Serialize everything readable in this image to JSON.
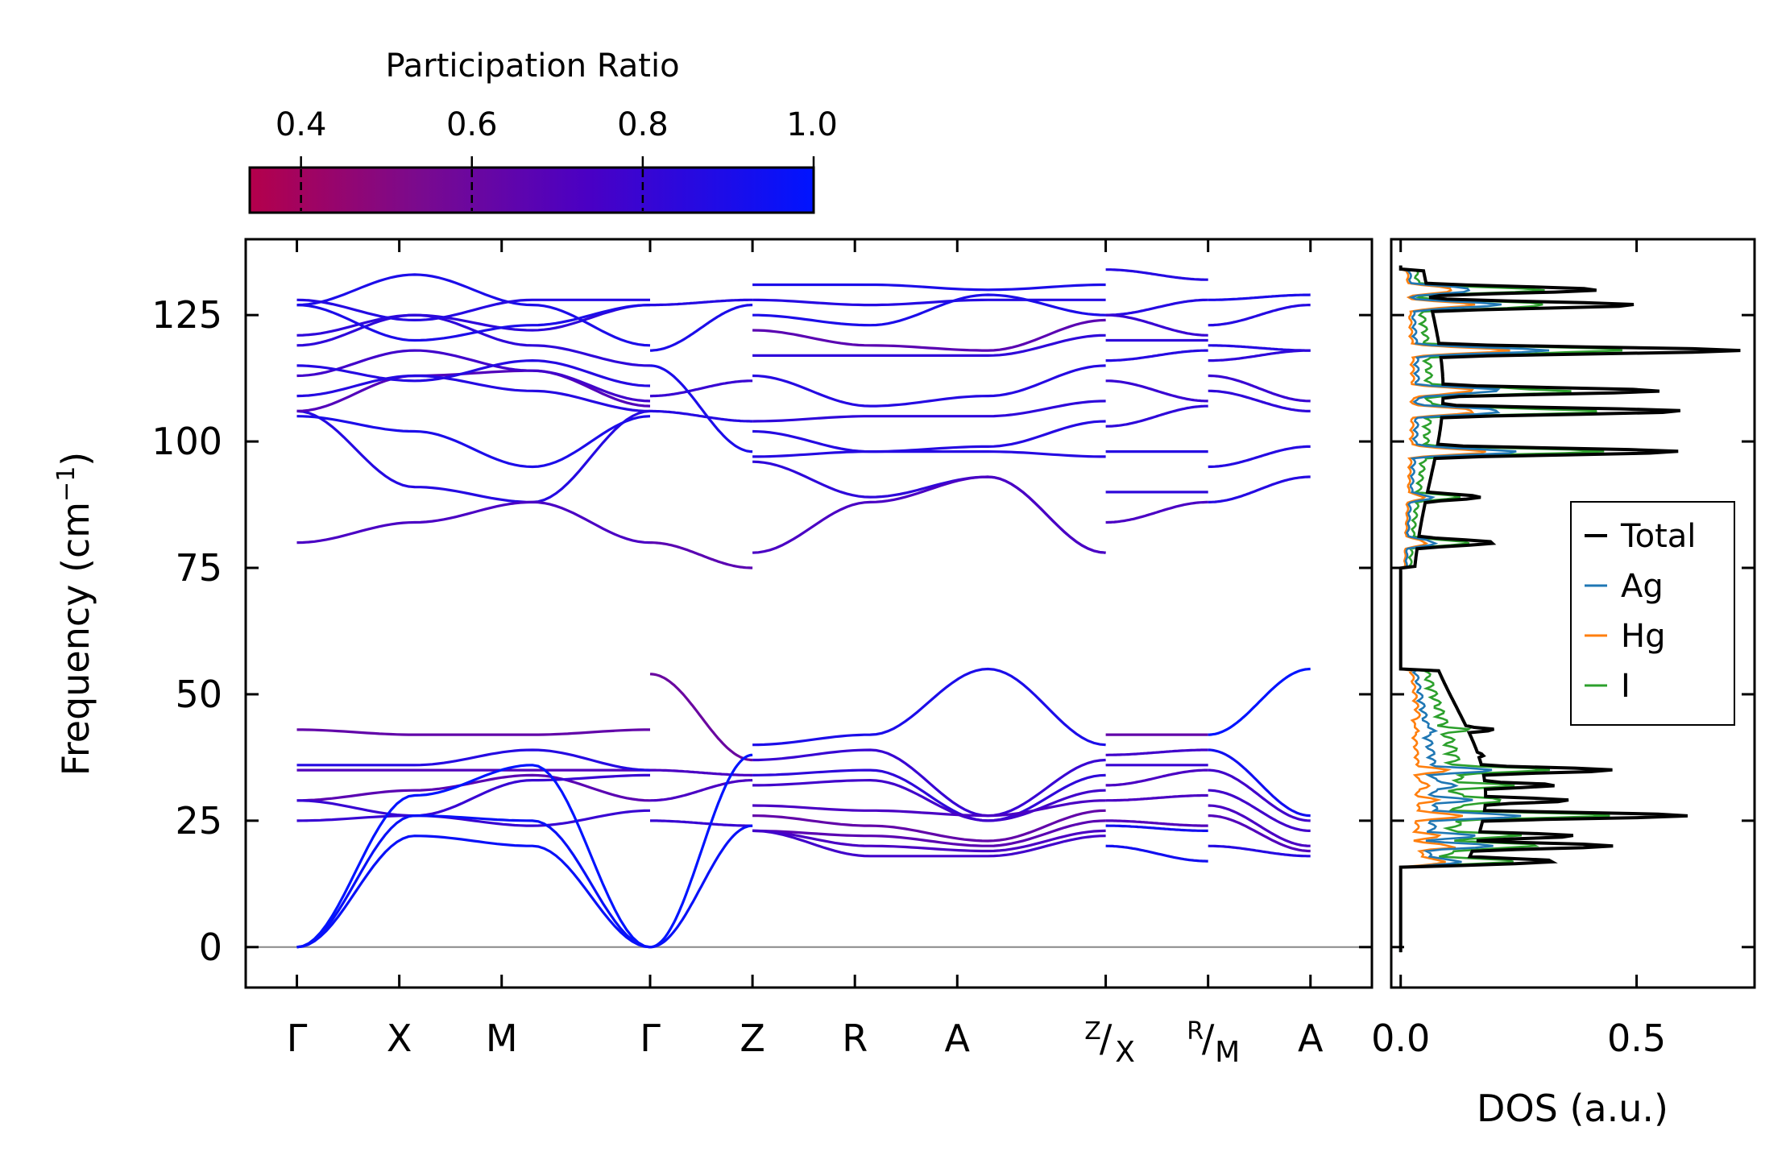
{
  "chart_data": {
    "type": "line",
    "colorbar": {
      "title": "Participation Ratio",
      "ticks": [
        0.4,
        0.6,
        0.8,
        1.0
      ],
      "tick_labels": [
        "0.4",
        "0.6",
        "0.8",
        "1.0"
      ],
      "range": [
        0.34,
        1.0
      ],
      "colormap": [
        "#b4004b",
        "#6e0a9b",
        "#3c00d2",
        "#0014ff"
      ]
    },
    "band_structure": {
      "ylabel_main": "Frequency (cm",
      "ylabel_sup": "−1",
      "ylabel_end": ")",
      "ylim": [
        -8,
        140
      ],
      "yticks": [
        0,
        25,
        50,
        75,
        100,
        125
      ],
      "ytick_labels": [
        "0",
        "25",
        "50",
        "75",
        "100",
        "125"
      ],
      "xlim": [
        -0.5,
        10.5
      ],
      "kpoint_labels": [
        "Γ",
        "X",
        "M",
        "Γ",
        "Z",
        "R",
        "A",
        "",
        "",
        "A"
      ],
      "kpoint_positions": [
        0,
        1,
        2,
        3.45,
        4.45,
        5.45,
        6.45,
        7.9,
        8.9,
        9.9
      ],
      "combined_labels": [
        {
          "top": "Z",
          "bottom": "X"
        },
        {
          "top": "R",
          "bottom": "M"
        }
      ],
      "segments": [
        {
          "path": "Γ-X-M-Γ",
          "x": [
            0,
            3.45
          ]
        },
        {
          "path": "Γ-Z",
          "x": [
            3.45,
            4.45
          ]
        },
        {
          "path": "Z-R-A-Z",
          "x": [
            4.45,
            7.9
          ]
        },
        {
          "path": "X-R",
          "x": [
            7.9,
            8.9
          ]
        },
        {
          "path": "M-A",
          "x": [
            8.9,
            9.9
          ]
        }
      ],
      "zero_line": 0,
      "acoustic_modes_at_gamma_cm1": [
        0,
        0,
        0
      ],
      "optical_band_ranges_cm1": [
        [
          17,
          55
        ],
        [
          75,
          134
        ]
      ],
      "gap_cm1": [
        55,
        75
      ]
    },
    "dos": {
      "xlabel": "DOS (a.u.)",
      "xlim": [
        -0.02,
        0.75
      ],
      "xticks": [
        0.0,
        0.5
      ],
      "xtick_labels": [
        "0.0",
        "0.5"
      ],
      "series": [
        {
          "name": "Total",
          "color": "#000000"
        },
        {
          "name": "Ag",
          "color": "#1f77b4"
        },
        {
          "name": "Hg",
          "color": "#ff7f0e"
        },
        {
          "name": "I",
          "color": "#2ca02c"
        }
      ],
      "total_peaks": [
        [
          17,
          0.33
        ],
        [
          20,
          0.45
        ],
        [
          22,
          0.37
        ],
        [
          26,
          0.61
        ],
        [
          29,
          0.36
        ],
        [
          32,
          0.33
        ],
        [
          35,
          0.45
        ],
        [
          38,
          0.18
        ],
        [
          43,
          0.2
        ],
        [
          80,
          0.2
        ],
        [
          89,
          0.17
        ],
        [
          98,
          0.59
        ],
        [
          106,
          0.6
        ],
        [
          110,
          0.55
        ],
        [
          118,
          0.72
        ],
        [
          127,
          0.5
        ],
        [
          130,
          0.42
        ]
      ]
    },
    "legend_position": "right-middle"
  }
}
